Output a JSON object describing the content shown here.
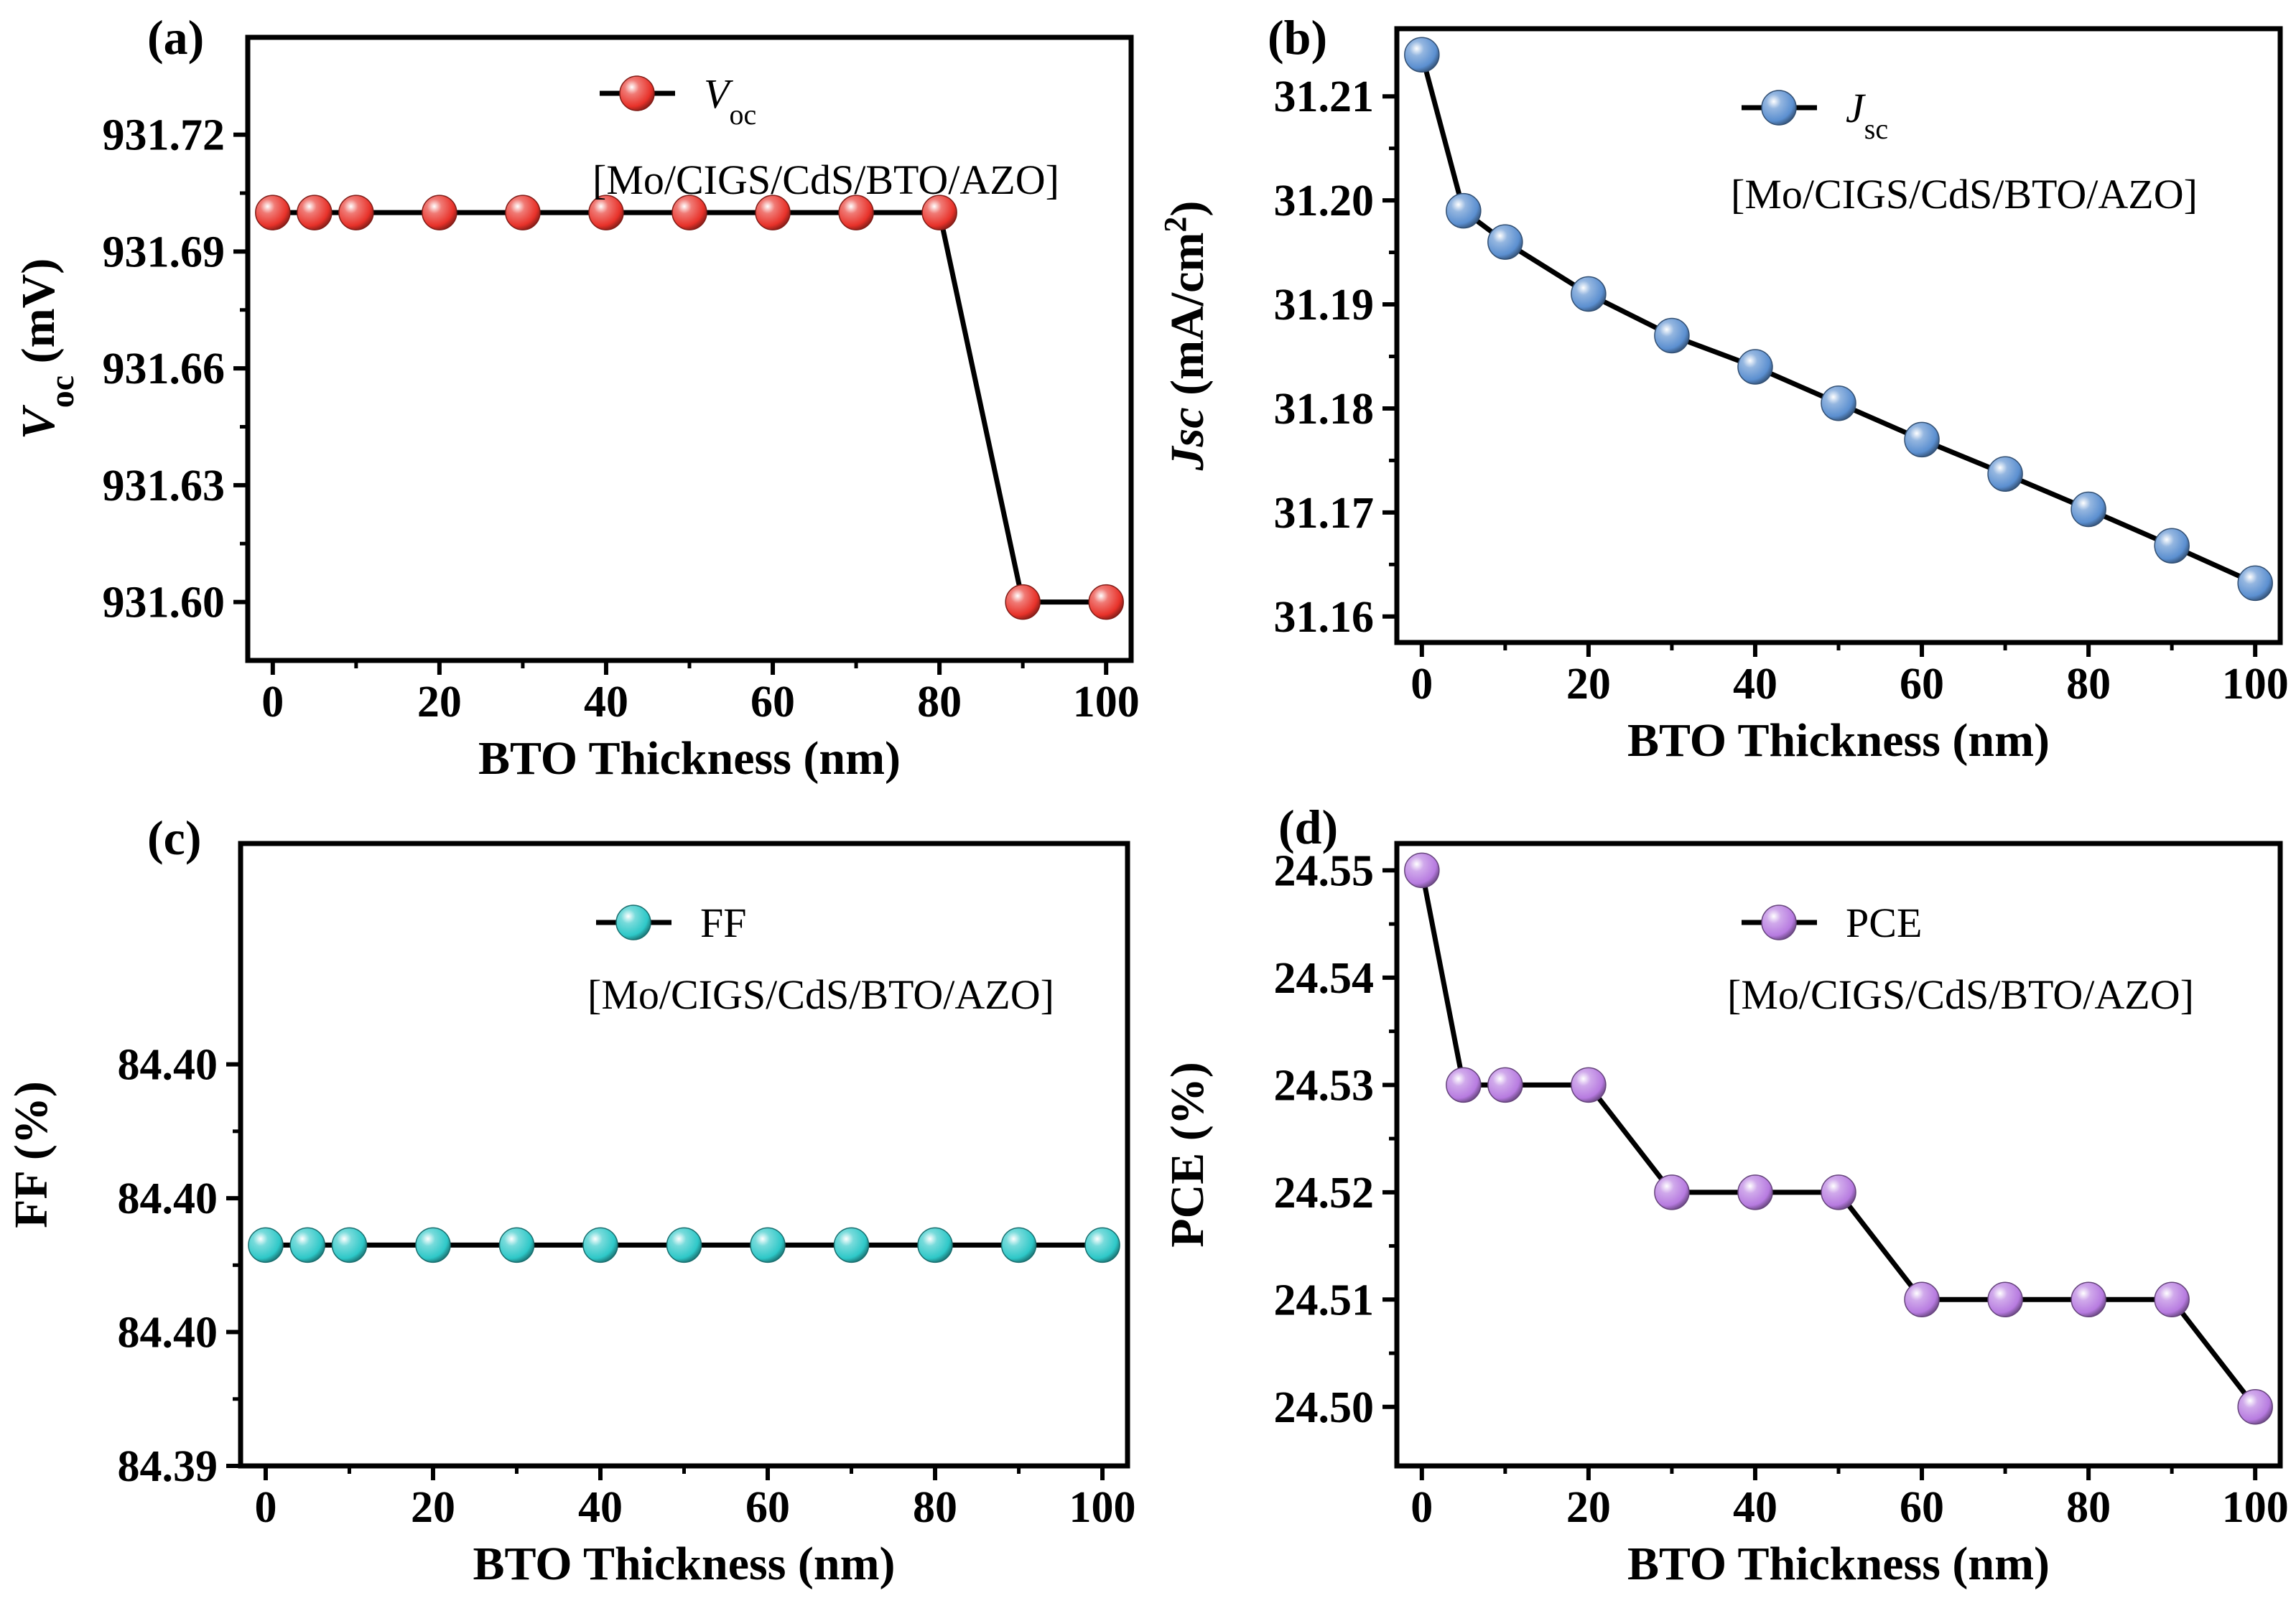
{
  "chart_data": [
    {
      "panel": "(a)",
      "type": "line",
      "legend": "V_oc",
      "legend_main": "V",
      "legend_sub": "oc",
      "annotation": "[Mo/CIGS/CdS/BTO/AZO]",
      "xlabel": "BTO Thickness (nm)",
      "ylabel": "V_oc (mV)",
      "ylabel_main": "V",
      "ylabel_sub": "oc",
      "ylabel_rest": " (mV)",
      "xlim": [
        -3,
        103
      ],
      "ylim": [
        931.585,
        931.745
      ],
      "xticks": [
        "0",
        "20",
        "40",
        "60",
        "80",
        "100"
      ],
      "yticks": [
        {
          "value": 931.6,
          "label": "931.60"
        },
        {
          "value": 931.63,
          "label": "931.63"
        },
        {
          "value": 931.66,
          "label": "931.66"
        },
        {
          "value": 931.69,
          "label": "931.69"
        },
        {
          "value": 931.72,
          "label": "931.72"
        }
      ],
      "color": "#e8322a",
      "x": [
        0,
        5,
        10,
        20,
        30,
        40,
        50,
        60,
        70,
        80,
        90,
        100
      ],
      "y": [
        931.7,
        931.7,
        931.7,
        931.7,
        931.7,
        931.7,
        931.7,
        931.7,
        931.7,
        931.7,
        931.6,
        931.6
      ]
    },
    {
      "panel": "(b)",
      "type": "line",
      "legend": "J_sc",
      "legend_main": "J",
      "legend_sub": "sc",
      "annotation": "[Mo/CIGS/CdS/BTO/AZO]",
      "xlabel": "BTO Thickness (nm)",
      "ylabel": "Jsc (mA/cm2)",
      "ylabel_main": "Jsc",
      "ylabel_rest": " (mA/cm",
      "ylabel_sup": "2",
      "ylabel_end": ")",
      "xlim": [
        -3,
        103
      ],
      "ylim": [
        31.1575,
        31.2165
      ],
      "xticks": [
        "0",
        "20",
        "40",
        "60",
        "80",
        "100"
      ],
      "yticks": [
        {
          "value": 31.16,
          "label": "31.16"
        },
        {
          "value": 31.17,
          "label": "31.17"
        },
        {
          "value": 31.18,
          "label": "31.18"
        },
        {
          "value": 31.19,
          "label": "31.19"
        },
        {
          "value": 31.2,
          "label": "31.20"
        },
        {
          "value": 31.21,
          "label": "31.21"
        }
      ],
      "color": "#5b8fd0",
      "x": [
        0,
        5,
        10,
        20,
        30,
        40,
        50,
        60,
        70,
        80,
        90,
        100
      ],
      "y": [
        31.214,
        31.199,
        31.196,
        31.191,
        31.187,
        31.184,
        31.1805,
        31.177,
        31.1737,
        31.1703,
        31.1668,
        31.1632
      ]
    },
    {
      "panel": "(c)",
      "type": "line",
      "legend": "FF",
      "annotation": "[Mo/CIGS/CdS/BTO/AZO]",
      "xlabel": "BTO Thickness (nm)",
      "ylabel": "FF (%)",
      "xlim": [
        -3,
        103
      ],
      "ylim": [
        0,
        4.65
      ],
      "xticks": [
        "0",
        "20",
        "40",
        "60",
        "80",
        "100"
      ],
      "yticks": [
        {
          "value": 0,
          "label": "84.39"
        },
        {
          "value": 1,
          "label": "84.40"
        },
        {
          "value": 2,
          "label": "84.40"
        },
        {
          "value": 3,
          "label": "84.40"
        }
      ],
      "color": "#2ec8c8",
      "x": [
        0,
        5,
        10,
        20,
        30,
        40,
        50,
        60,
        70,
        80,
        90,
        100
      ],
      "y": [
        1.65,
        1.65,
        1.65,
        1.65,
        1.65,
        1.65,
        1.65,
        1.65,
        1.65,
        1.65,
        1.65,
        1.65
      ]
    },
    {
      "panel": "(d)",
      "type": "line",
      "legend": "PCE",
      "annotation": "[Mo/CIGS/CdS/BTO/AZO]",
      "xlabel": "BTO Thickness (nm)",
      "ylabel": "PCE (%)",
      "xlim": [
        -3,
        103
      ],
      "ylim": [
        24.4945,
        24.5525
      ],
      "xticks": [
        "0",
        "20",
        "40",
        "60",
        "80",
        "100"
      ],
      "yticks": [
        {
          "value": 24.5,
          "label": "24.50"
        },
        {
          "value": 24.51,
          "label": "24.51"
        },
        {
          "value": 24.52,
          "label": "24.52"
        },
        {
          "value": 24.53,
          "label": "24.53"
        },
        {
          "value": 24.54,
          "label": "24.54"
        },
        {
          "value": 24.55,
          "label": "24.55"
        }
      ],
      "color": "#b77be0",
      "x": [
        0,
        5,
        10,
        20,
        30,
        40,
        50,
        60,
        70,
        80,
        90,
        100
      ],
      "y": [
        24.55,
        24.53,
        24.53,
        24.53,
        24.52,
        24.52,
        24.52,
        24.51,
        24.51,
        24.51,
        24.51,
        24.5
      ]
    }
  ]
}
